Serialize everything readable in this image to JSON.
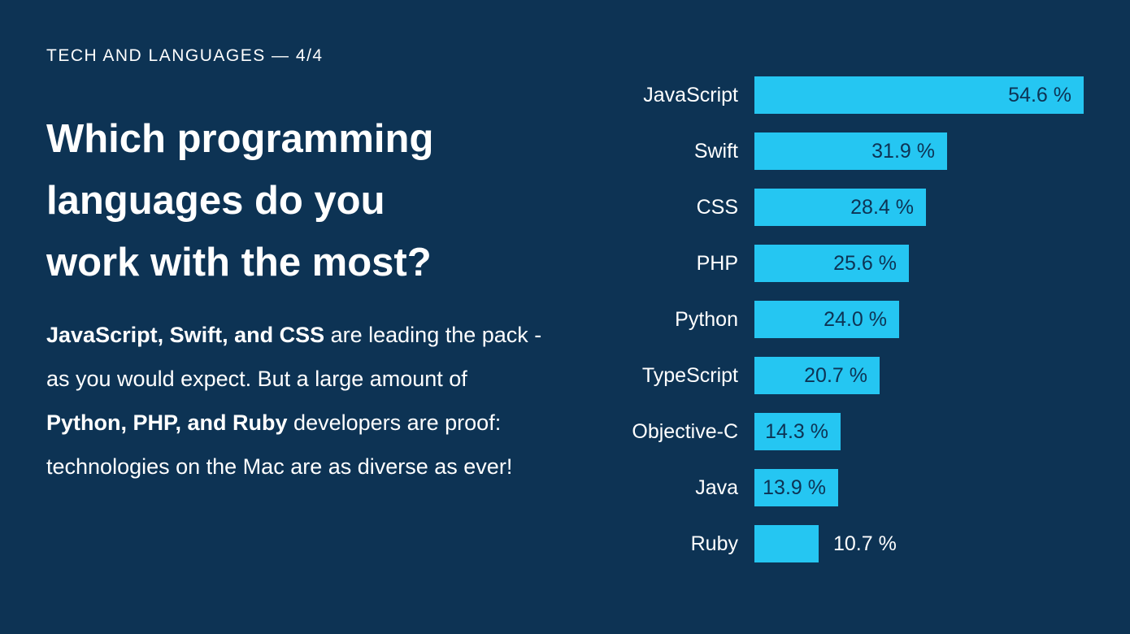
{
  "page": {
    "bg_color": "#0d3354",
    "text_color": "#ffffff"
  },
  "header": {
    "eyebrow": "TECH AND LANGUAGES — 4/4"
  },
  "main": {
    "title": "Which programming languages do you work with the most?",
    "title_lines": [
      "Which programming",
      "languages do you",
      "work with the most?"
    ],
    "paragraph_segments": [
      {
        "text": "JavaScript, Swift, and CSS",
        "bold": true
      },
      {
        "text": " are leading the pack - as you would expect. But a large amount of ",
        "bold": false
      },
      {
        "text": "Python, PHP, and Ruby",
        "bold": true
      },
      {
        "text": " developers are proof: technologies on the Mac are as diverse as ever!",
        "bold": false
      }
    ]
  },
  "chart_data": {
    "type": "bar",
    "orientation": "horizontal",
    "title": "Which programming languages do you work with the most?",
    "categories": [
      "JavaScript",
      "Swift",
      "CSS",
      "PHP",
      "Python",
      "TypeScript",
      "Objective-C",
      "Java",
      "Ruby"
    ],
    "values": [
      54.6,
      31.9,
      28.4,
      25.6,
      24.0,
      20.7,
      14.3,
      13.9,
      10.7
    ],
    "value_labels": [
      "54.6 %",
      "31.9 %",
      "28.4 %",
      "25.6 %",
      "24.0 %",
      "20.7 %",
      "14.3 %",
      "13.9 %",
      "10.7 %"
    ],
    "xlabel": "",
    "ylabel": "",
    "xlim": [
      0,
      54.6
    ],
    "grid": false,
    "legend": "none",
    "bar_color": "#25c6f2",
    "value_label_inside_color": "#0d3354",
    "value_label_outside_color": "#ffffff",
    "outside_label_threshold": 12
  }
}
